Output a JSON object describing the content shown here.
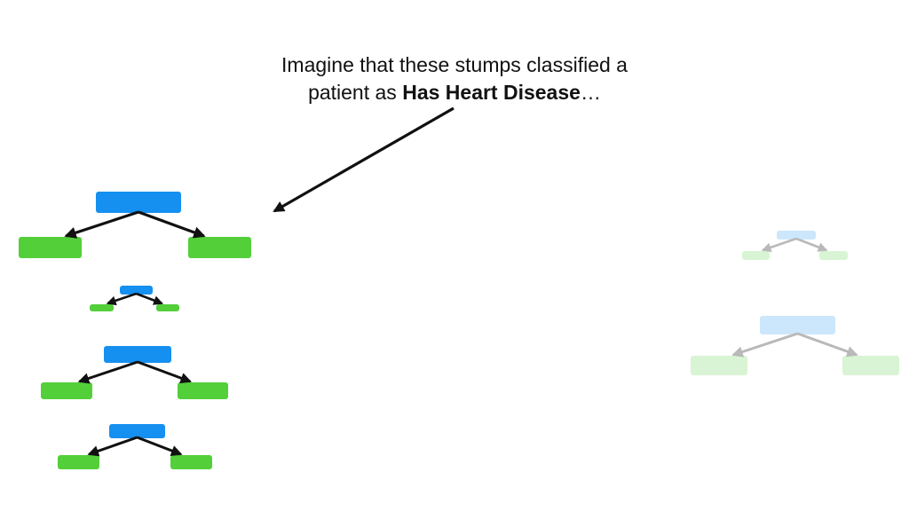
{
  "slide": {
    "caption": {
      "line1": "Imagine that these stumps classified a",
      "line2_prefix": "patient as ",
      "line2_bold": "Has Heart Disease",
      "line2_suffix": "…"
    }
  },
  "colors": {
    "root_node": "#1590f0",
    "leaf_node": "#53cf3a",
    "arrow": "#111111",
    "faded_arrow": "#b9b9b9",
    "background": "#ffffff"
  },
  "stumps": [
    {
      "id": "stump-1",
      "group": "left",
      "faded": false
    },
    {
      "id": "stump-2",
      "group": "left",
      "faded": false
    },
    {
      "id": "stump-3",
      "group": "left",
      "faded": false
    },
    {
      "id": "stump-4",
      "group": "left",
      "faded": false
    },
    {
      "id": "stump-5",
      "group": "right",
      "faded": true
    },
    {
      "id": "stump-6",
      "group": "right",
      "faded": true
    }
  ]
}
